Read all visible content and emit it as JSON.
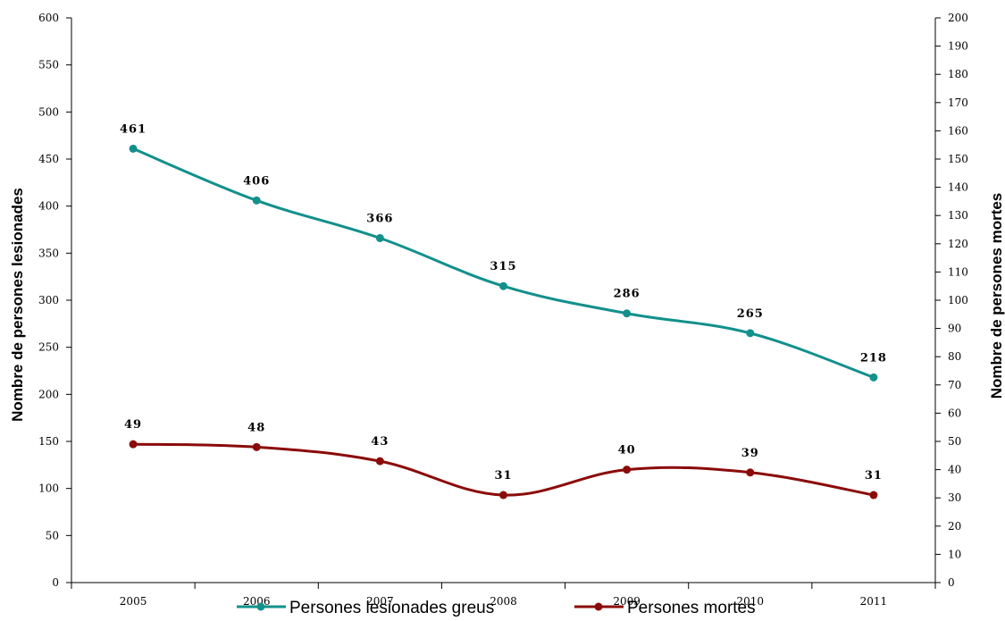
{
  "chart_data": {
    "type": "line",
    "categories": [
      "2005",
      "2006",
      "2007",
      "2008",
      "2009",
      "2010",
      "2011"
    ],
    "y_left": {
      "label": "Nombre de persones lesionades",
      "ylim": [
        0,
        600
      ],
      "ticks": [
        "0",
        "50",
        "100",
        "150",
        "200",
        "250",
        "300",
        "350",
        "400",
        "450",
        "500",
        "550",
        "600"
      ]
    },
    "y_right": {
      "label": "Nombre de persones mortes",
      "ylim": [
        0,
        200
      ],
      "ticks": [
        "0",
        "10",
        "20",
        "30",
        "40",
        "50",
        "60",
        "70",
        "80",
        "90",
        "100",
        "110",
        "120",
        "130",
        "140",
        "150",
        "160",
        "170",
        "180",
        "190",
        "200"
      ]
    },
    "series": [
      {
        "name": "Persones lesionades greus",
        "axis": "left",
        "color": "#12908C",
        "values": [
          461,
          406,
          366,
          315,
          286,
          265,
          218
        ],
        "labels": [
          "461",
          "406",
          "366",
          "315",
          "286",
          "265",
          "218"
        ]
      },
      {
        "name": "Persones mortes",
        "axis": "right",
        "color": "#8B0A0A",
        "values": [
          49,
          48,
          43,
          31,
          40,
          39,
          31
        ],
        "labels": [
          "49",
          "48",
          "43",
          "31",
          "40",
          "39",
          "31"
        ]
      }
    ],
    "grid": false,
    "legend_position": "bottom"
  }
}
